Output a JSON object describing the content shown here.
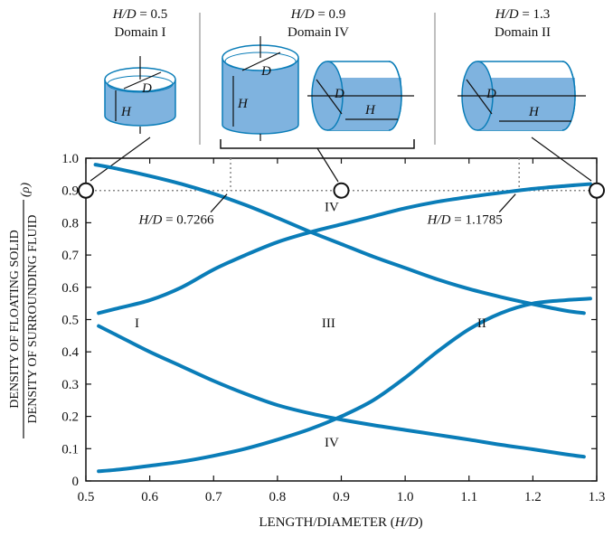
{
  "header": {
    "panels": [
      {
        "ratio_label": "H/D = 0.5",
        "ratio_var": "H/D",
        "ratio_value": "= 0.5",
        "domain": "Domain I"
      },
      {
        "ratio_label": "H/D = 0.9",
        "ratio_var": "H/D",
        "ratio_value": "= 0.9",
        "domain": "Domain IV"
      },
      {
        "ratio_label": "H/D = 1.3",
        "ratio_var": "H/D",
        "ratio_value": "= 1.3",
        "domain": "Domain II"
      }
    ],
    "dim_labels": {
      "diameter": "D",
      "height": "H"
    }
  },
  "chart_data": {
    "type": "line",
    "title": "",
    "xlabel": "LENGTH/DIAMETER (",
    "xlabel_var": "H/D",
    "xlabel_close": ")",
    "ylabel_numerator": "DENSITY OF FLOATING SOLID",
    "ylabel_denominator": "DENSITY OF SURROUNDING FLUID",
    "ylabel_symbol": "(ρ)",
    "xlim": [
      0.5,
      1.3
    ],
    "ylim": [
      0,
      1.0
    ],
    "x_ticks": [
      "0.5",
      "0.6",
      "0.7",
      "0.8",
      "0.9",
      "1.0",
      "1.1",
      "1.2",
      "1.3"
    ],
    "y_ticks": [
      "0",
      "0.1",
      "0.2",
      "0.3",
      "0.4",
      "0.5",
      "0.6",
      "0.7",
      "0.8",
      "0.9",
      "1.0"
    ],
    "color": "#0a7db8",
    "reference_line": {
      "y": 0.9,
      "style": "dotted"
    },
    "annotations": [
      {
        "text_var": "H/D",
        "text_value": "= 0.7266",
        "x": 0.7266,
        "y": 0.9
      },
      {
        "text_var": "H/D",
        "text_value": "= 1.1785",
        "x": 1.1785,
        "y": 0.9
      }
    ],
    "region_labels": [
      {
        "text": "I",
        "x": 0.58,
        "y": 0.49
      },
      {
        "text": "III",
        "x": 0.88,
        "y": 0.49
      },
      {
        "text": "II",
        "x": 1.12,
        "y": 0.49
      },
      {
        "text": "IV",
        "x": 0.885,
        "y": 0.85
      },
      {
        "text": "IV",
        "x": 0.885,
        "y": 0.12
      }
    ],
    "markers": [
      {
        "x": 0.5,
        "y": 0.9
      },
      {
        "x": 0.9,
        "y": 0.9
      },
      {
        "x": 1.3,
        "y": 0.9
      }
    ],
    "series": [
      {
        "x": [
          0.515,
          0.55,
          0.6,
          0.65,
          0.7,
          0.75,
          0.8,
          0.85,
          0.9,
          0.95,
          1.0,
          1.05,
          1.1,
          1.15,
          1.2,
          1.25,
          1.28
        ],
        "y": [
          0.98,
          0.967,
          0.945,
          0.92,
          0.89,
          0.855,
          0.815,
          0.773,
          0.734,
          0.695,
          0.66,
          0.625,
          0.595,
          0.57,
          0.548,
          0.528,
          0.52
        ]
      },
      {
        "x": [
          0.52,
          0.55,
          0.6,
          0.65,
          0.7,
          0.75,
          0.8,
          0.85,
          0.9,
          0.95,
          1.0,
          1.05,
          1.1,
          1.15,
          1.2,
          1.25,
          1.28
        ],
        "y": [
          0.48,
          0.45,
          0.4,
          0.355,
          0.31,
          0.27,
          0.235,
          0.21,
          0.19,
          0.173,
          0.158,
          0.143,
          0.128,
          0.112,
          0.098,
          0.083,
          0.075
        ]
      },
      {
        "x": [
          0.52,
          0.55,
          0.6,
          0.65,
          0.7,
          0.75,
          0.8,
          0.85,
          0.9,
          0.95,
          1.0,
          1.05,
          1.1,
          1.15,
          1.2,
          1.25,
          1.29
        ],
        "y": [
          0.03,
          0.035,
          0.047,
          0.06,
          0.078,
          0.1,
          0.128,
          0.16,
          0.2,
          0.25,
          0.32,
          0.4,
          0.47,
          0.52,
          0.55,
          0.56,
          0.565
        ]
      },
      {
        "x": [
          0.52,
          0.55,
          0.6,
          0.65,
          0.7,
          0.75,
          0.8,
          0.85,
          0.9,
          0.95,
          1.0,
          1.05,
          1.1,
          1.15,
          1.2,
          1.25,
          1.29
        ],
        "y": [
          0.52,
          0.535,
          0.56,
          0.6,
          0.655,
          0.7,
          0.74,
          0.77,
          0.795,
          0.82,
          0.845,
          0.865,
          0.88,
          0.893,
          0.905,
          0.914,
          0.92
        ]
      }
    ]
  }
}
